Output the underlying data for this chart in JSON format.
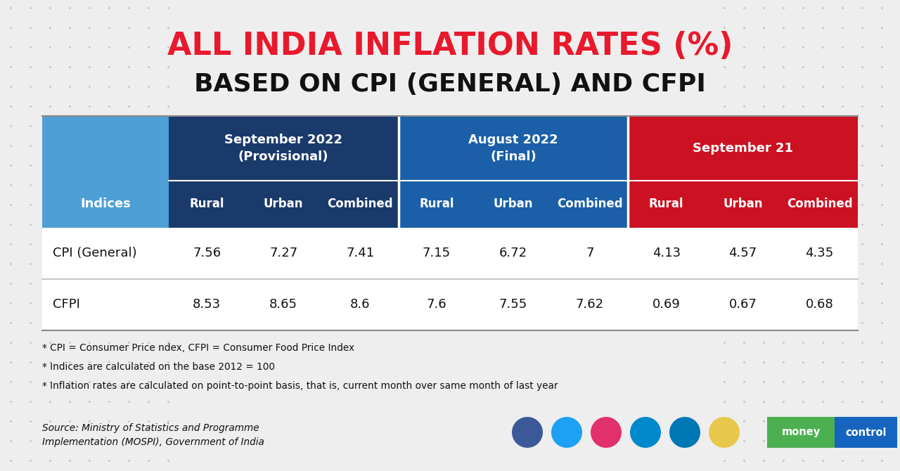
{
  "title_line1": "ALL INDIA INFLATION RATES (%)",
  "title_line2": "BASED ON CPI (GENERAL) AND CFPI",
  "title_line1_color": "#E8192C",
  "title_line2_color": "#111111",
  "background_color": "#eeeeee",
  "col_groups": [
    {
      "label": "September 2022\n(Provisional)",
      "color": "#1a3a6b",
      "span": 3
    },
    {
      "label": "August 2022\n(Final)",
      "color": "#1a5fa8",
      "span": 3
    },
    {
      "label": "September 21",
      "color": "#CC1122",
      "span": 3
    }
  ],
  "subheaders": [
    "Rural",
    "Urban",
    "Combined",
    "Rural",
    "Urban",
    "Combined",
    "Rural",
    "Urban",
    "Combined"
  ],
  "subheader_colors_groups": [
    "#1a3a6b",
    "#1a3a6b",
    "#1a3a6b",
    "#1a5fa8",
    "#1a5fa8",
    "#1a5fa8",
    "#CC1122",
    "#CC1122",
    "#CC1122"
  ],
  "index_col_header": "Indices",
  "index_col_color": "#4d9fd6",
  "rows": [
    {
      "label": "CPI (General)",
      "values": [
        "7.56",
        "7.27",
        "7.41",
        "7.15",
        "6.72",
        "7",
        "4.13",
        "4.57",
        "4.35"
      ]
    },
    {
      "label": "CFPI",
      "values": [
        "8.53",
        "8.65",
        "8.6",
        "7.6",
        "7.55",
        "7.62",
        "0.69",
        "0.67",
        "0.68"
      ]
    }
  ],
  "footnotes": [
    "* CPI = Consumer Price ndex, CFPI = Consumer Food Price Index",
    "* Indices are calculated on the base 2012 = 100",
    "* Inflation rates are calculated on point-to-point basis, that is, current month over same month of last year"
  ],
  "source_text": "Source: Ministry of Statistics and Programme\nImplementation (MOSPI), Government of India",
  "icon_colors": [
    "#3b5998",
    "#1da1f2",
    "#e1306c",
    "#0088cc",
    "#0077b5",
    "#e8c84a"
  ],
  "mc_green": "#4caf50",
  "mc_blue": "#1565c0"
}
